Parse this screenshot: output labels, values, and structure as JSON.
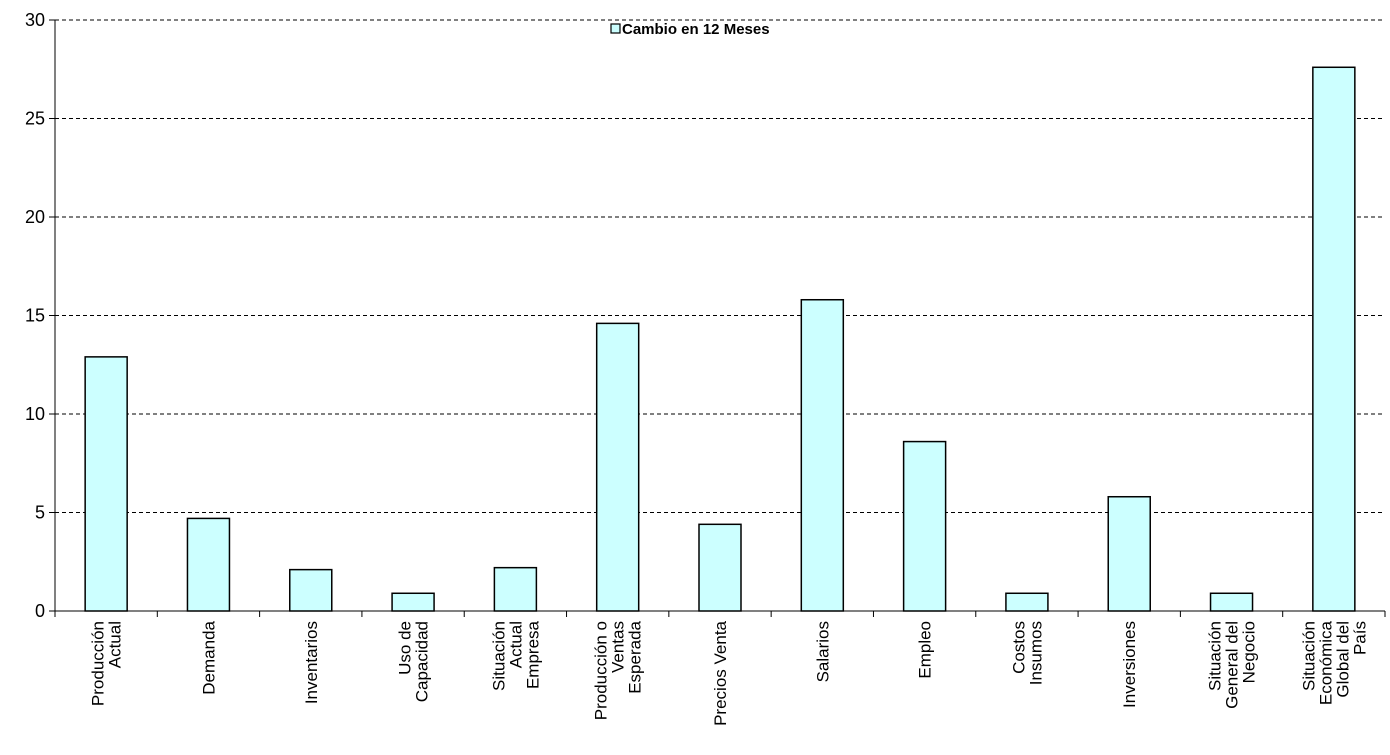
{
  "chart_data": {
    "type": "bar",
    "categories": [
      [
        "Producción",
        "Actual"
      ],
      [
        "Demanda"
      ],
      [
        "Inventarios"
      ],
      [
        "Uso de",
        "Capacidad"
      ],
      [
        "Situación",
        "Actual",
        "Empresa"
      ],
      [
        "Producción o",
        "Ventas",
        "Esperada"
      ],
      [
        "Precios Venta"
      ],
      [
        "Salarios"
      ],
      [
        "Empleo"
      ],
      [
        "Costos",
        "Insumos"
      ],
      [
        "Inversiones"
      ],
      [
        "Situación",
        "General del",
        "Negocio"
      ],
      [
        "Situación",
        "Económica",
        "Global del",
        "País"
      ]
    ],
    "series": [
      {
        "name": "Cambio en 12 Meses",
        "values": [
          12.9,
          4.7,
          2.1,
          0.9,
          2.2,
          14.6,
          4.4,
          15.8,
          8.6,
          0.9,
          5.8,
          0.9,
          27.6
        ]
      }
    ],
    "ylim": [
      0,
      30
    ],
    "yticks": [
      0,
      5,
      10,
      15,
      20,
      25,
      30
    ],
    "grid": true,
    "legend_position": "top-center",
    "colors": {
      "bar_fill": "#ccffff",
      "bar_stroke": "#000000",
      "grid": "#000000"
    }
  }
}
